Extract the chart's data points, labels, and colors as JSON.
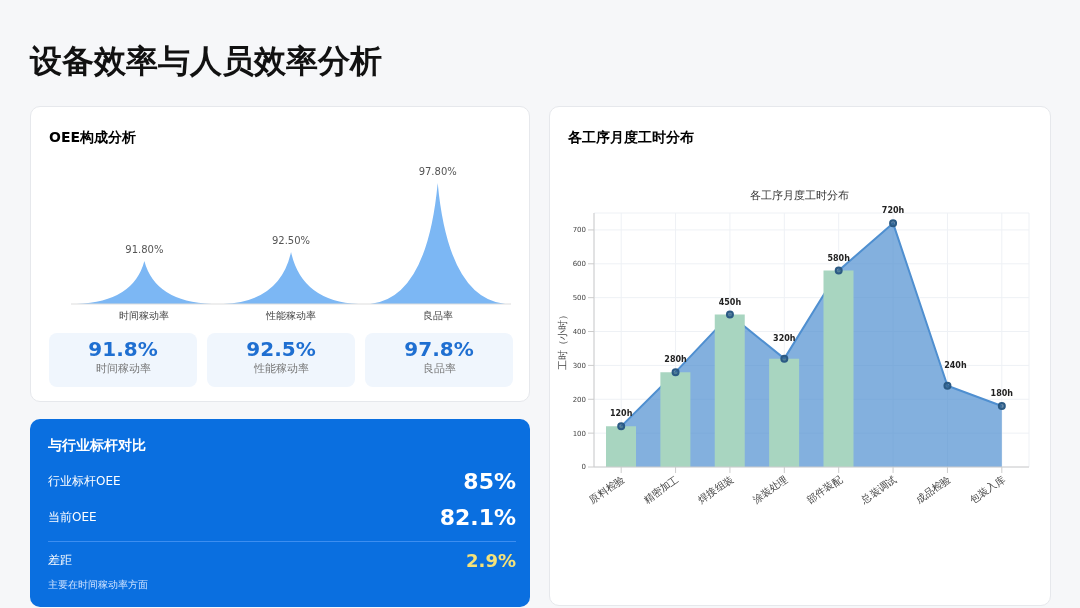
{
  "chart_data": [
    {
      "type": "bar",
      "title": "设备效率与人员效率分析",
      "subtitle": "OEE构成分析",
      "categories": [
        "时间稼动率",
        "性能稼动率",
        "良品率"
      ],
      "values": [
        91.8,
        92.5,
        97.8
      ],
      "color": "#7cb7f4",
      "value_labels": [
        "91.80%",
        "92.50%",
        "97.80%"
      ],
      "ylim": [
        88.5,
        97.8
      ],
      "tick_labels": "x"
    },
    {
      "type": "other",
      "categories": [
        "时间稼动率",
        "性能稼动率",
        "良品率"
      ],
      "value_labels": [
        "91.8%",
        "92.5%",
        "97.8%"
      ]
    },
    {
      "type": "other",
      "title": "与行业标杆对比",
      "categories": [
        "行业标杆OEE",
        "当前OEE",
        "差距"
      ],
      "value_labels": [
        "85%",
        "82.1%",
        "2.9%"
      ],
      "annotations": [
        "主要在时间稼动率方面"
      ]
    },
    {
      "type": "bar",
      "title": "各工序月度工时分布",
      "subtitle": "各工序月度工时分布",
      "ylabel": "工时（小时）",
      "categories": [
        "原料检验",
        "精密加工",
        "焊接组装",
        "涂装处理",
        "部件装配",
        "总装调试",
        "成品检验",
        "包装入库"
      ],
      "series": [
        {
          "type": "bar",
          "color": "#a8d5c0",
          "values": [
            120,
            280,
            450,
            320,
            580,
            null,
            null,
            null
          ]
        },
        {
          "type": "area",
          "color": "#4f8fd0",
          "values": [
            120,
            280,
            450,
            320,
            580,
            720,
            240,
            180
          ],
          "value_labels": [
            "120h",
            "280h",
            "450h",
            "320h",
            "580h",
            "720h",
            "240h",
            "180h"
          ]
        }
      ],
      "ylim": [
        0,
        750
      ],
      "yticks": [
        0,
        100,
        200,
        300,
        400,
        500,
        600,
        700
      ],
      "grid": true,
      "marker": "circle"
    }
  ]
}
